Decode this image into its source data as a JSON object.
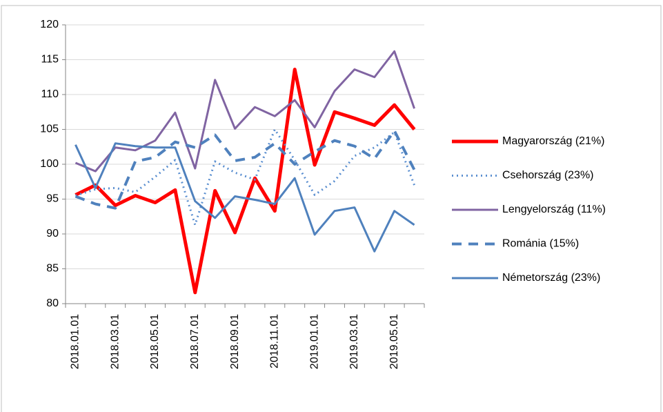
{
  "chart_data": {
    "type": "line",
    "categories": [
      "2018.01.01",
      null,
      "2018.03.01",
      null,
      "2018.05.01",
      null,
      "2018.07.01",
      null,
      "2018.09.01",
      null,
      "2018.11.01",
      null,
      "2019.01.01",
      null,
      "2019.03.01",
      null,
      "2019.05.01",
      null
    ],
    "series": [
      {
        "name": "Magyarország (21%)",
        "color": "#ff0000",
        "dash": "solid",
        "values": [
          95.6,
          97.0,
          94.1,
          95.5,
          94.5,
          96.3,
          81.6,
          96.2,
          90.2,
          98.0,
          93.3,
          113.6,
          99.9,
          107.5,
          106.6,
          105.6,
          108.5,
          105.0
        ]
      },
      {
        "name": "Csehország (23%)",
        "color": "#5b8fd0",
        "dash": "dotted",
        "values": [
          95.5,
          96.4,
          96.6,
          96.0,
          98.2,
          100.6,
          91.3,
          100.4,
          98.8,
          97.8,
          105.0,
          100.6,
          95.6,
          97.6,
          101.2,
          102.4,
          104.6,
          97.0
        ]
      },
      {
        "name": "Lengyelország (11%)",
        "color": "#8064a2",
        "dash": "solid",
        "values": [
          100.2,
          99.0,
          102.4,
          102.0,
          103.4,
          107.4,
          99.4,
          112.1,
          105.1,
          108.2,
          106.9,
          109.2,
          105.3,
          110.5,
          113.6,
          112.5,
          116.2,
          108.0
        ]
      },
      {
        "name": "Románia (15%)",
        "color": "#4f81bd",
        "dash": "dashed",
        "values": [
          95.4,
          94.3,
          93.7,
          100.4,
          101.0,
          103.2,
          102.4,
          104.2,
          100.5,
          101.0,
          103.0,
          100.0,
          101.8,
          103.4,
          102.6,
          100.8,
          104.8,
          99.2
        ]
      },
      {
        "name": "Németország (23%)",
        "color": "#4f81bd",
        "dash": "solid",
        "values": [
          102.8,
          96.6,
          103.0,
          102.6,
          102.4,
          102.4,
          94.7,
          92.3,
          95.4,
          94.9,
          94.3,
          98.0,
          89.9,
          93.3,
          93.8,
          87.5,
          93.3,
          91.3
        ]
      }
    ],
    "ylim": [
      80,
      120
    ],
    "yticks": [
      80,
      85,
      90,
      95,
      100,
      105,
      110,
      115,
      120
    ],
    "grid": true,
    "legend": "right"
  }
}
